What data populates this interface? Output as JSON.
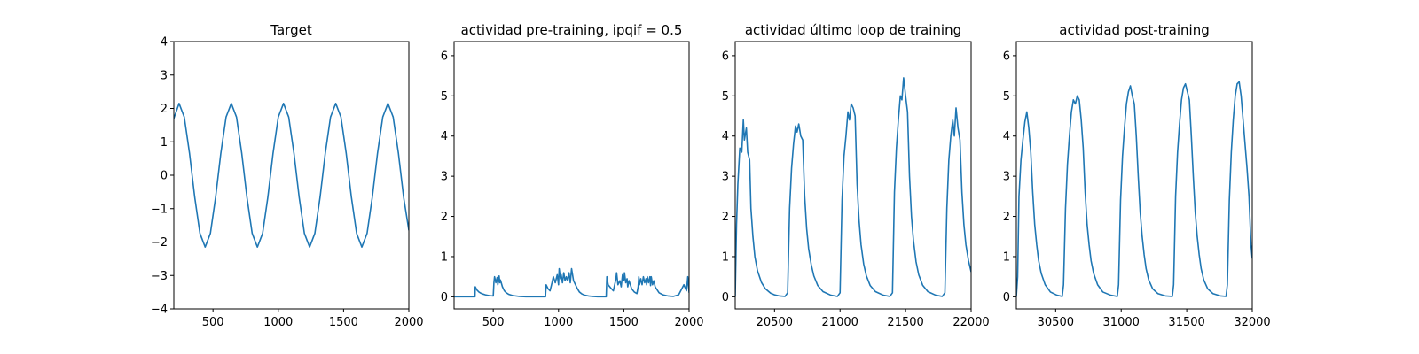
{
  "figure": {
    "line_color": "#1f77b4",
    "background": "#ffffff"
  },
  "chart_data": [
    {
      "type": "line",
      "title": "Target",
      "xlim": [
        200,
        2000
      ],
      "ylim": [
        -4,
        4
      ],
      "xticks": [
        500,
        1000,
        1500,
        2000
      ],
      "yticks": [
        -4,
        -3,
        -2,
        -1,
        0,
        1,
        2,
        3,
        4
      ],
      "xtick_labels": [
        "500",
        "1000",
        "1500",
        "2000"
      ],
      "ytick_labels": [
        "−4",
        "−3",
        "−2",
        "−1",
        "0",
        "1",
        "2",
        "3",
        "4"
      ],
      "series": [
        {
          "x": [
            200,
            240,
            280,
            320,
            360,
            400,
            440,
            480,
            520,
            560,
            600,
            640,
            680,
            720,
            760,
            800,
            840,
            880,
            920,
            960,
            1000,
            1040,
            1080,
            1120,
            1160,
            1200,
            1240,
            1280,
            1320,
            1360,
            1400,
            1440,
            1480,
            1520,
            1560,
            1600,
            1640,
            1680,
            1720,
            1760,
            1800,
            1840,
            1880,
            1920,
            1960,
            2000
          ],
          "y": [
            1.7,
            2.15,
            1.74,
            0.66,
            -0.66,
            -1.74,
            -2.15,
            -1.74,
            -0.66,
            0.66,
            1.74,
            2.15,
            1.74,
            0.66,
            -0.66,
            -1.74,
            -2.15,
            -1.74,
            -0.66,
            0.66,
            1.74,
            2.15,
            1.74,
            0.66,
            -0.66,
            -1.74,
            -2.15,
            -1.74,
            -0.66,
            0.66,
            1.74,
            2.15,
            1.74,
            0.66,
            -0.66,
            -1.74,
            -2.15,
            -1.74,
            -0.66,
            0.66,
            1.74,
            2.15,
            1.74,
            0.66,
            -0.66,
            -1.65
          ]
        }
      ]
    },
    {
      "type": "line",
      "title": "actividad pre-training, ipqif = 0.5",
      "xlim": [
        200,
        2000
      ],
      "ylim": [
        -0.3,
        6.35
      ],
      "xticks": [
        500,
        1000,
        1500,
        2000
      ],
      "yticks": [
        0,
        1,
        2,
        3,
        4,
        5,
        6
      ],
      "xtick_labels": [
        "500",
        "1000",
        "1500",
        "2000"
      ],
      "ytick_labels": [
        "0",
        "1",
        "2",
        "3",
        "4",
        "5",
        "6"
      ],
      "series": [
        {
          "x": [
            200,
            360,
            362,
            375,
            390,
            405,
            420,
            440,
            470,
            500,
            505,
            510,
            520,
            530,
            535,
            545,
            550,
            555,
            570,
            585,
            600,
            620,
            650,
            700,
            750,
            800,
            850,
            900,
            905,
            920,
            935,
            950,
            960,
            975,
            990,
            1000,
            1005,
            1015,
            1020,
            1030,
            1040,
            1050,
            1060,
            1070,
            1080,
            1090,
            1100,
            1115,
            1130,
            1145,
            1160,
            1180,
            1200,
            1230,
            1260,
            1300,
            1365,
            1370,
            1380,
            1400,
            1420,
            1440,
            1445,
            1455,
            1470,
            1480,
            1490,
            1500,
            1505,
            1515,
            1525,
            1530,
            1540,
            1550,
            1560,
            1580,
            1600,
            1610,
            1615,
            1620,
            1630,
            1640,
            1650,
            1660,
            1670,
            1675,
            1680,
            1690,
            1700,
            1705,
            1710,
            1720,
            1730,
            1740,
            1750,
            1760,
            1770,
            1800,
            1840,
            1880,
            1920,
            1960,
            1980,
            1990,
            2000
          ],
          "y": [
            0,
            0,
            0.25,
            0.17,
            0.12,
            0.09,
            0.07,
            0.05,
            0.03,
            0.02,
            0.35,
            0.5,
            0.35,
            0.48,
            0.3,
            0.52,
            0.35,
            0.42,
            0.25,
            0.15,
            0.1,
            0.06,
            0.03,
            0.01,
            0,
            0,
            0,
            0,
            0.3,
            0.2,
            0.15,
            0.35,
            0.5,
            0.35,
            0.55,
            0.3,
            0.7,
            0.45,
            0.55,
            0.35,
            0.6,
            0.4,
            0.5,
            0.4,
            0.6,
            0.35,
            0.7,
            0.4,
            0.3,
            0.2,
            0.12,
            0.07,
            0.04,
            0.02,
            0.01,
            0,
            0,
            0.5,
            0.3,
            0.22,
            0.15,
            0.45,
            0.6,
            0.3,
            0.4,
            0.25,
            0.55,
            0.4,
            0.6,
            0.35,
            0.45,
            0.25,
            0.4,
            0.3,
            0.2,
            0.12,
            0.08,
            0.25,
            0.5,
            0.3,
            0.45,
            0.3,
            0.5,
            0.35,
            0.45,
            0.3,
            0.5,
            0.35,
            0.5,
            0.28,
            0.5,
            0.3,
            0.4,
            0.25,
            0.2,
            0.15,
            0.1,
            0.05,
            0.02,
            0.01,
            0.05,
            0.3,
            0.15,
            0.5,
            0.1
          ]
        }
      ]
    },
    {
      "type": "line",
      "title": "actividad último loop de training",
      "xlim": [
        20200,
        22000
      ],
      "ylim": [
        -0.3,
        6.35
      ],
      "xticks": [
        20500,
        21000,
        21500,
        22000
      ],
      "yticks": [
        0,
        1,
        2,
        3,
        4,
        5,
        6
      ],
      "xtick_labels": [
        "20500",
        "21000",
        "21500",
        "22000"
      ],
      "ytick_labels": [
        "0",
        "1",
        "2",
        "3",
        "4",
        "5",
        "6"
      ],
      "series": [
        {
          "x": [
            20200,
            20210,
            20220,
            20235,
            20250,
            20262,
            20270,
            20285,
            20295,
            20310,
            20320,
            20335,
            20350,
            20370,
            20400,
            20430,
            20470,
            20500,
            20540,
            20580,
            20600,
            20615,
            20630,
            20645,
            20660,
            20672,
            20685,
            20700,
            20715,
            20730,
            20745,
            20760,
            20780,
            20800,
            20830,
            20870,
            20930,
            20980,
            21000,
            21015,
            21030,
            21045,
            21060,
            21072,
            21085,
            21100,
            21115,
            21130,
            21145,
            21160,
            21180,
            21200,
            21230,
            21270,
            21330,
            21380,
            21400,
            21415,
            21430,
            21445,
            21460,
            21472,
            21485,
            21500,
            21515,
            21530,
            21545,
            21560,
            21580,
            21600,
            21630,
            21670,
            21730,
            21780,
            21800,
            21815,
            21830,
            21845,
            21860,
            21872,
            21885,
            21900,
            21915,
            21930,
            21945,
            21960,
            21980,
            22000
          ],
          "y": [
            0,
            1.8,
            2.8,
            3.7,
            3.6,
            4.4,
            3.9,
            4.2,
            3.6,
            3.4,
            2.2,
            1.5,
            1.0,
            0.65,
            0.36,
            0.2,
            0.09,
            0.05,
            0.02,
            0.01,
            0.1,
            2.2,
            3.2,
            3.8,
            4.25,
            4.1,
            4.3,
            4.0,
            3.9,
            2.5,
            1.7,
            1.2,
            0.8,
            0.52,
            0.28,
            0.13,
            0.04,
            0.01,
            0.1,
            2.4,
            3.5,
            4.0,
            4.6,
            4.4,
            4.8,
            4.7,
            4.5,
            2.8,
            1.9,
            1.3,
            0.82,
            0.53,
            0.28,
            0.13,
            0.04,
            0.01,
            0.1,
            2.6,
            3.7,
            4.4,
            5.0,
            4.9,
            5.45,
            5.0,
            4.6,
            3.0,
            2.0,
            1.4,
            0.87,
            0.55,
            0.29,
            0.13,
            0.04,
            0.01,
            0.1,
            2.2,
            3.4,
            4.0,
            4.4,
            4.0,
            4.7,
            4.2,
            3.9,
            2.6,
            1.8,
            1.3,
            0.9,
            0.62
          ]
        }
      ]
    },
    {
      "type": "line",
      "title": "actividad post-training",
      "xlim": [
        30200,
        32000
      ],
      "ylim": [
        -0.3,
        6.35
      ],
      "xticks": [
        30500,
        31000,
        31500,
        32000
      ],
      "yticks": [
        0,
        1,
        2,
        3,
        4,
        5,
        6
      ],
      "xtick_labels": [
        "30500",
        "31000",
        "31500",
        "32000"
      ],
      "ytick_labels": [
        "0",
        "1",
        "2",
        "3",
        "4",
        "5",
        "6"
      ],
      "series": [
        {
          "x": [
            30200,
            30210,
            30220,
            30235,
            30250,
            30265,
            30280,
            30295,
            30310,
            30325,
            30340,
            30355,
            30370,
            30390,
            30420,
            30460,
            30510,
            30550,
            30560,
            30575,
            30590,
            30605,
            30620,
            30635,
            30650,
            30665,
            30680,
            30695,
            30710,
            30725,
            30740,
            30755,
            30770,
            30790,
            30820,
            30860,
            30920,
            30970,
            30980,
            30995,
            31010,
            31025,
            31040,
            31055,
            31070,
            31085,
            31100,
            31115,
            31130,
            31145,
            31160,
            31175,
            31190,
            31210,
            31240,
            31280,
            31340,
            31390,
            31400,
            31415,
            31430,
            31445,
            31460,
            31475,
            31490,
            31505,
            31520,
            31535,
            31550,
            31565,
            31580,
            31595,
            31610,
            31630,
            31660,
            31700,
            31760,
            31800,
            31810,
            31825,
            31840,
            31855,
            31870,
            31885,
            31900,
            31915,
            31930,
            31945,
            31960,
            31975,
            31990,
            32000
          ],
          "y": [
            0,
            0.5,
            2.5,
            3.4,
            3.9,
            4.35,
            4.6,
            4.2,
            3.6,
            2.6,
            1.8,
            1.3,
            0.9,
            0.58,
            0.3,
            0.12,
            0.04,
            0.01,
            0.3,
            2.2,
            3.3,
            4.0,
            4.6,
            4.9,
            4.8,
            5.0,
            4.9,
            4.4,
            3.7,
            2.6,
            1.8,
            1.3,
            0.9,
            0.58,
            0.3,
            0.12,
            0.04,
            0.01,
            0.3,
            2.4,
            3.5,
            4.2,
            4.8,
            5.1,
            5.25,
            5.0,
            4.8,
            4.0,
            3.0,
            2.1,
            1.5,
            1.05,
            0.7,
            0.42,
            0.2,
            0.08,
            0.02,
            0.01,
            0.3,
            2.5,
            3.6,
            4.3,
            4.9,
            5.2,
            5.3,
            5.1,
            4.9,
            4.0,
            3.0,
            2.1,
            1.5,
            1.05,
            0.7,
            0.42,
            0.2,
            0.08,
            0.02,
            0.01,
            0.3,
            2.4,
            3.6,
            4.4,
            5.0,
            5.3,
            5.35,
            5.0,
            4.4,
            3.8,
            3.2,
            2.5,
            1.3,
            0.95
          ]
        }
      ]
    }
  ]
}
